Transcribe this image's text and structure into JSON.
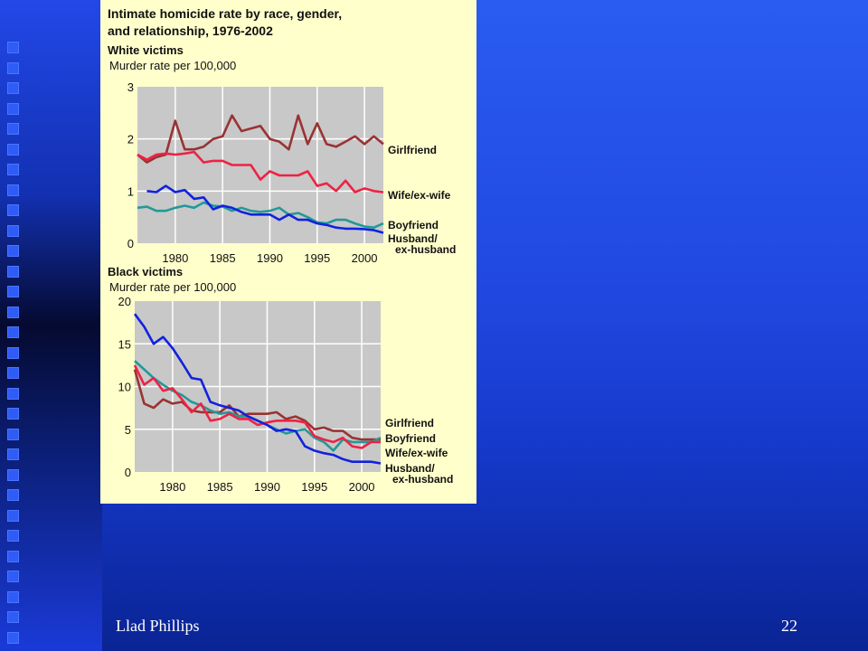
{
  "chart_data": [
    {
      "type": "line",
      "title": "Intimate homicide rate by race, gender, and relationship, 1976-2002",
      "panel_title": "White victims",
      "ylabel": "Murder rate per 100,000",
      "xlim": [
        1976,
        2002
      ],
      "ylim": [
        0,
        3
      ],
      "xticks": [
        1980,
        1985,
        1990,
        1995,
        2000
      ],
      "yticks": [
        0,
        1,
        2,
        3
      ],
      "series": [
        {
          "name": "Girlfriend",
          "color": "#993333",
          "x": [
            1976,
            1977,
            1978,
            1979,
            1980,
            1981,
            1982,
            1983,
            1984,
            1985,
            1986,
            1987,
            1988,
            1989,
            1990,
            1991,
            1992,
            1993,
            1994,
            1995,
            1996,
            1997,
            1998,
            1999,
            2000,
            2001,
            2002
          ],
          "y": [
            1.7,
            1.55,
            1.65,
            1.7,
            2.35,
            1.8,
            1.8,
            1.85,
            2.0,
            2.05,
            2.45,
            2.15,
            2.2,
            2.25,
            2.0,
            1.95,
            1.8,
            2.45,
            1.9,
            2.3,
            1.9,
            1.85,
            1.95,
            2.05,
            1.9,
            2.05,
            1.9
          ]
        },
        {
          "name": "Wife/ex-wife",
          "color": "#ee2244",
          "x": [
            1976,
            1977,
            1978,
            1979,
            1980,
            1981,
            1982,
            1983,
            1984,
            1985,
            1986,
            1987,
            1988,
            1989,
            1990,
            1991,
            1992,
            1993,
            1994,
            1995,
            1996,
            1997,
            1998,
            1999,
            2000,
            2001,
            2002
          ],
          "y": [
            1.7,
            1.6,
            1.7,
            1.72,
            1.7,
            1.72,
            1.75,
            1.55,
            1.58,
            1.58,
            1.5,
            1.5,
            1.5,
            1.22,
            1.38,
            1.3,
            1.3,
            1.3,
            1.38,
            1.1,
            1.15,
            1.0,
            1.2,
            0.98,
            1.05,
            1.0,
            0.98
          ]
        },
        {
          "name": "Boyfriend",
          "color": "#229999",
          "x": [
            1976,
            1977,
            1978,
            1979,
            1980,
            1981,
            1982,
            1983,
            1984,
            1985,
            1986,
            1987,
            1988,
            1989,
            1990,
            1991,
            1992,
            1993,
            1994,
            1995,
            1996,
            1997,
            1998,
            1999,
            2000,
            2001,
            2002
          ],
          "y": [
            0.68,
            0.7,
            0.62,
            0.62,
            0.68,
            0.72,
            0.68,
            0.78,
            0.72,
            0.7,
            0.62,
            0.68,
            0.62,
            0.6,
            0.62,
            0.68,
            0.55,
            0.58,
            0.5,
            0.4,
            0.38,
            0.45,
            0.45,
            0.38,
            0.32,
            0.3,
            0.38
          ]
        },
        {
          "name": "Husband/ ex-husband",
          "color": "#1122dd",
          "x": [
            1977,
            1978,
            1979,
            1980,
            1981,
            1982,
            1983,
            1984,
            1985,
            1986,
            1987,
            1988,
            1989,
            1990,
            1991,
            1992,
            1993,
            1994,
            1995,
            1996,
            1997,
            1998,
            1999,
            2000,
            2001,
            2002
          ],
          "y": [
            1.0,
            0.98,
            1.1,
            0.98,
            1.02,
            0.85,
            0.88,
            0.65,
            0.72,
            0.68,
            0.6,
            0.55,
            0.55,
            0.55,
            0.45,
            0.55,
            0.45,
            0.45,
            0.38,
            0.35,
            0.3,
            0.28,
            0.28,
            0.27,
            0.25,
            0.2
          ]
        }
      ]
    },
    {
      "type": "line",
      "panel_title": "Black victims",
      "ylabel": "Murder rate per 100,000",
      "xlim": [
        1976,
        2002
      ],
      "ylim": [
        0,
        20
      ],
      "xticks": [
        1980,
        1985,
        1990,
        1995,
        2000
      ],
      "yticks": [
        0,
        5,
        10,
        15,
        20
      ],
      "series": [
        {
          "name": "Girlfriend",
          "color": "#993333",
          "x": [
            1976,
            1977,
            1978,
            1979,
            1980,
            1981,
            1982,
            1983,
            1984,
            1985,
            1986,
            1987,
            1988,
            1989,
            1990,
            1991,
            1992,
            1993,
            1994,
            1995,
            1996,
            1997,
            1998,
            1999,
            2000,
            2001,
            2002
          ],
          "y": [
            12.0,
            8.0,
            7.5,
            8.5,
            8.0,
            8.2,
            7.2,
            7.0,
            7.0,
            7.0,
            7.8,
            6.5,
            6.8,
            6.8,
            6.8,
            7.0,
            6.2,
            6.5,
            6.0,
            5.0,
            5.2,
            4.8,
            4.8,
            4.0,
            3.8,
            3.8,
            3.8
          ]
        },
        {
          "name": "Boyfriend",
          "color": "#229999",
          "x": [
            1976,
            1977,
            1978,
            1979,
            1980,
            1981,
            1982,
            1983,
            1984,
            1985,
            1986,
            1987,
            1988,
            1989,
            1990,
            1991,
            1992,
            1993,
            1994,
            1995,
            1996,
            1997,
            1998,
            1999,
            2000,
            2001,
            2002
          ],
          "y": [
            13.0,
            12.0,
            11.0,
            10.2,
            9.5,
            9.0,
            8.2,
            7.8,
            7.2,
            6.8,
            7.0,
            6.5,
            6.5,
            6.0,
            5.5,
            5.0,
            4.5,
            4.8,
            5.0,
            4.0,
            3.5,
            2.5,
            3.8,
            3.5,
            3.5,
            3.5,
            4.0
          ]
        },
        {
          "name": "Wife/ex-wife",
          "color": "#ee2244",
          "x": [
            1976,
            1977,
            1978,
            1979,
            1980,
            1981,
            1982,
            1983,
            1984,
            1985,
            1986,
            1987,
            1988,
            1989,
            1990,
            1991,
            1992,
            1993,
            1994,
            1995,
            1996,
            1997,
            1998,
            1999,
            2000,
            2001,
            2002
          ],
          "y": [
            12.5,
            10.2,
            11.0,
            9.5,
            9.8,
            8.5,
            7.0,
            8.0,
            6.0,
            6.2,
            6.8,
            6.2,
            6.2,
            5.5,
            5.8,
            6.0,
            6.0,
            6.0,
            5.8,
            4.2,
            3.8,
            3.5,
            4.0,
            3.0,
            2.8,
            3.5,
            3.5
          ]
        },
        {
          "name": "Husband/ ex-husband",
          "color": "#1122dd",
          "x": [
            1976,
            1977,
            1978,
            1979,
            1980,
            1981,
            1982,
            1983,
            1984,
            1985,
            1986,
            1987,
            1988,
            1989,
            1990,
            1991,
            1992,
            1993,
            1994,
            1995,
            1996,
            1997,
            1998,
            1999,
            2000,
            2001,
            2002
          ],
          "y": [
            18.5,
            17.0,
            15.0,
            15.8,
            14.5,
            12.8,
            11.0,
            10.8,
            8.2,
            7.8,
            7.5,
            7.2,
            6.5,
            6.0,
            5.5,
            4.8,
            5.0,
            4.8,
            3.0,
            2.5,
            2.2,
            2.0,
            1.5,
            1.2,
            1.2,
            1.2,
            1.0
          ]
        }
      ]
    }
  ],
  "footer": {
    "author": "Llad Phillips",
    "page_number": "22"
  }
}
